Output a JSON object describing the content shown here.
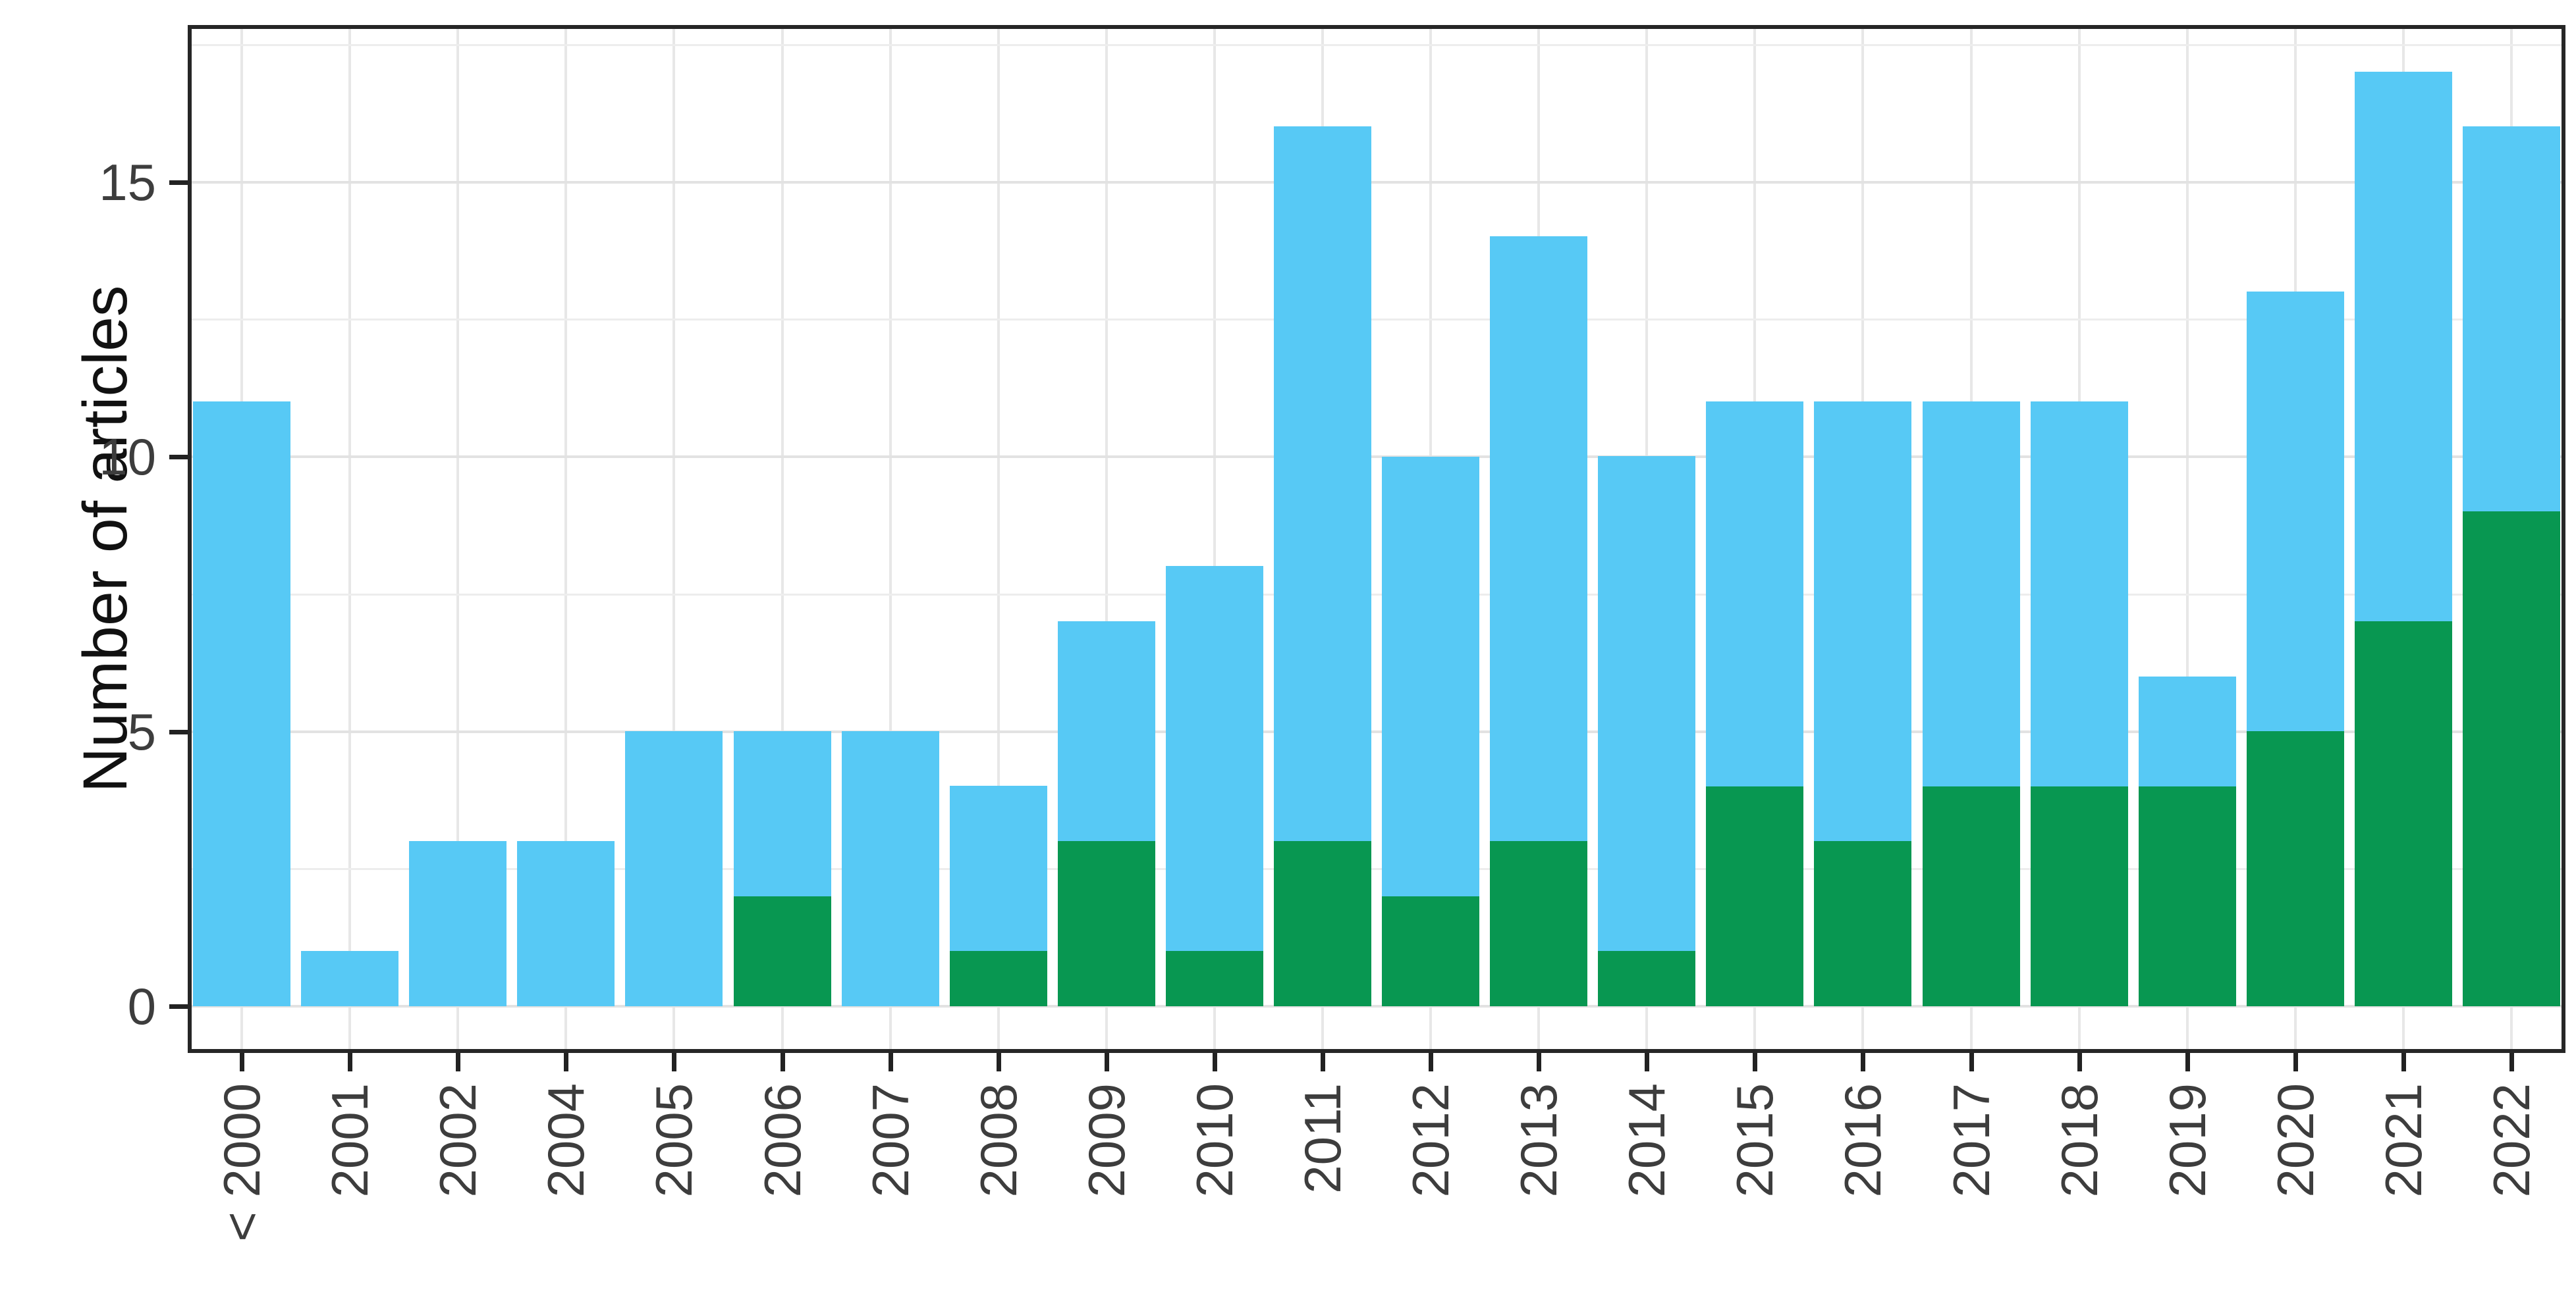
{
  "chart_data": {
    "type": "bar",
    "stacked": true,
    "title": "",
    "xlabel": "",
    "ylabel": "Number of articles",
    "categories": [
      "< 2000",
      "2001",
      "2002",
      "2004",
      "2005",
      "2006",
      "2007",
      "2008",
      "2009",
      "2010",
      "2011",
      "2012",
      "2013",
      "2014",
      "2015",
      "2016",
      "2017",
      "2018",
      "2019",
      "2020",
      "2021",
      "2022"
    ],
    "series": [
      {
        "name": "green",
        "color": "#089751",
        "values": [
          0,
          0,
          0,
          0,
          0,
          2,
          0,
          1,
          3,
          1,
          3,
          2,
          3,
          1,
          4,
          3,
          4,
          4,
          4,
          5,
          7,
          9
        ]
      },
      {
        "name": "blue",
        "color": "#57C9F5",
        "values": [
          11,
          1,
          3,
          3,
          5,
          3,
          5,
          3,
          4,
          7,
          13,
          8,
          11,
          9,
          7,
          8,
          7,
          7,
          2,
          8,
          10,
          7
        ]
      }
    ],
    "totals": [
      11,
      1,
      3,
      3,
      5,
      5,
      5,
      4,
      7,
      8,
      16,
      10,
      14,
      10,
      11,
      11,
      11,
      11,
      6,
      13,
      17,
      16
    ],
    "ylim": [
      0,
      17
    ],
    "y_major_ticks": [
      0,
      5,
      10,
      15
    ],
    "y_minor_gridlines": [
      2.5,
      7.5,
      12.5,
      17.5
    ],
    "grid": true,
    "legend_position": "none",
    "colors": {
      "bar_blue": "#57C9F5",
      "bar_green": "#089751",
      "panel_border": "#262626",
      "grid_major": "#e2e2e2",
      "grid_minor": "#ededed",
      "tick_text": "#3d3d3d",
      "axis_title_text": "#111111"
    }
  }
}
